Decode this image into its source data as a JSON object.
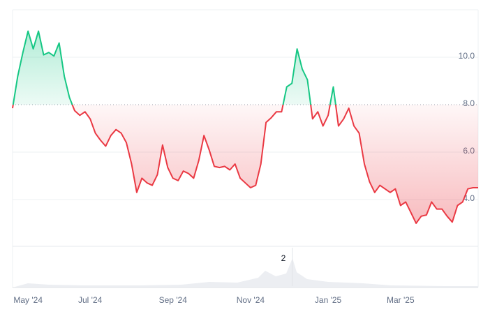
{
  "chart_data": {
    "type": "baseline",
    "categories": [
      null,
      null,
      null,
      "May '24",
      null,
      null,
      null,
      null,
      null,
      null,
      null,
      null,
      null,
      null,
      null,
      "Jul '24",
      null,
      null,
      null,
      null,
      null,
      null,
      null,
      null,
      null,
      null,
      null,
      null,
      null,
      null,
      null,
      "Sep '24",
      null,
      null,
      null,
      null,
      null,
      null,
      null,
      null,
      null,
      null,
      null,
      null,
      null,
      null,
      "Nov '24",
      null,
      null,
      null,
      null,
      null,
      null,
      null,
      null,
      null,
      null,
      null,
      null,
      null,
      null,
      "Jan '25",
      null,
      null,
      null,
      null,
      null,
      null,
      null,
      null,
      null,
      null,
      null,
      null,
      null,
      "Mar '25",
      null,
      null,
      null,
      null,
      null,
      null,
      null,
      null,
      null,
      null,
      null,
      null,
      null,
      null,
      null
    ],
    "values": [
      7.85,
      9.2,
      10.2,
      11.1,
      10.35,
      11.1,
      10.1,
      10.2,
      10.05,
      10.6,
      9.2,
      8.3,
      7.75,
      7.55,
      7.7,
      7.4,
      6.8,
      6.5,
      6.25,
      6.7,
      6.95,
      6.8,
      6.4,
      5.5,
      4.3,
      4.9,
      4.7,
      4.6,
      5.05,
      6.3,
      5.35,
      4.9,
      4.8,
      5.2,
      5.1,
      4.9,
      5.65,
      6.7,
      6.1,
      5.4,
      5.35,
      5.4,
      5.25,
      5.5,
      4.9,
      4.7,
      4.5,
      4.6,
      5.5,
      7.25,
      7.45,
      7.7,
      7.7,
      8.75,
      8.9,
      10.35,
      9.5,
      9.05,
      7.4,
      7.7,
      7.1,
      7.55,
      8.75,
      7.1,
      7.4,
      7.85,
      7.1,
      6.8,
      5.5,
      4.75,
      4.3,
      4.6,
      4.45,
      4.3,
      4.45,
      3.75,
      3.9,
      3.45,
      3.0,
      3.3,
      3.35,
      3.9,
      3.6,
      3.6,
      3.3,
      3.05,
      3.75,
      3.9,
      4.45,
      4.5,
      4.5
    ],
    "baseline": 8,
    "up_color": "#16c784",
    "down_color": "#ea3943",
    "ylim": [
      2,
      12
    ],
    "yticks": [
      {
        "value": 4,
        "label": "4.0"
      },
      {
        "value": 6,
        "label": "6.0"
      },
      {
        "value": 8,
        "label": "8.0"
      },
      {
        "value": 10,
        "label": "10.0"
      }
    ],
    "grid": true,
    "volume_label": "2"
  }
}
